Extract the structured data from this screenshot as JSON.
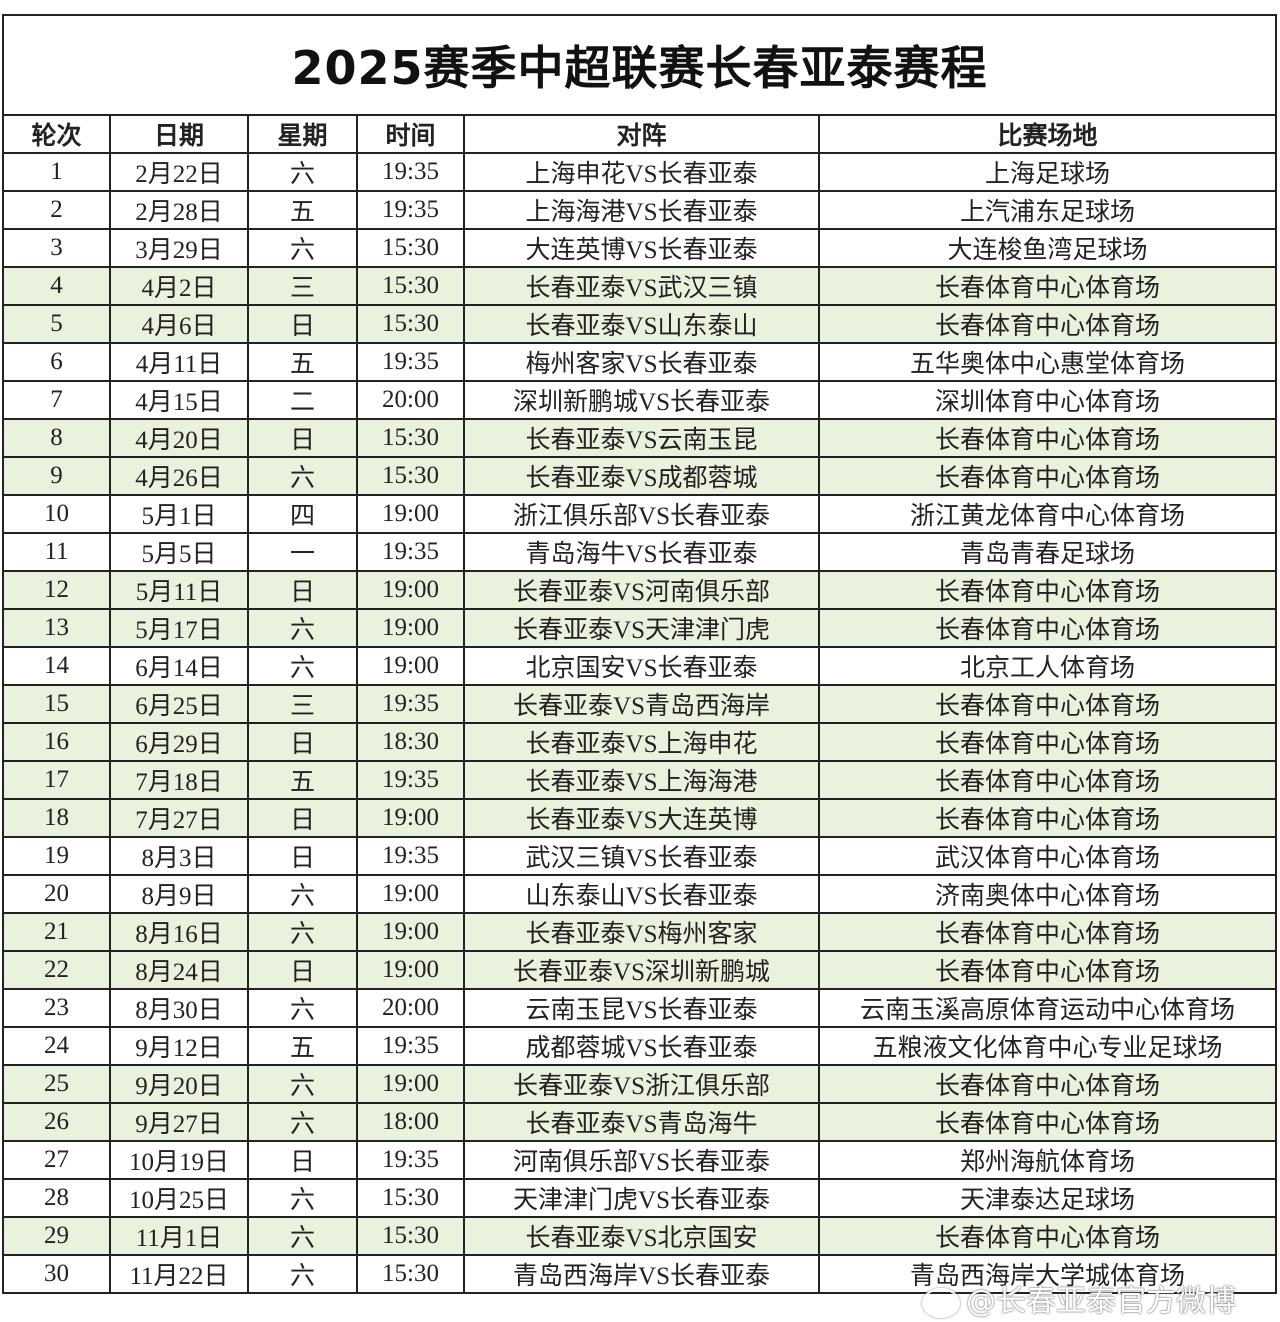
{
  "title": "2025赛季中超联赛长春亚泰赛程",
  "columns": [
    "轮次",
    "日期",
    "星期",
    "时间",
    "对阵",
    "比赛场地"
  ],
  "highlight_color": "#eaf2dd",
  "rows": [
    {
      "round": "1",
      "date": "2月22日",
      "weekday": "六",
      "time": "19:35",
      "match": "上海申花VS长春亚泰",
      "venue": "上海足球场",
      "home": false
    },
    {
      "round": "2",
      "date": "2月28日",
      "weekday": "五",
      "time": "19:35",
      "match": "上海海港VS长春亚泰",
      "venue": "上汽浦东足球场",
      "home": false
    },
    {
      "round": "3",
      "date": "3月29日",
      "weekday": "六",
      "time": "15:30",
      "match": "大连英博VS长春亚泰",
      "venue": "大连梭鱼湾足球场",
      "home": false
    },
    {
      "round": "4",
      "date": "4月2日",
      "weekday": "三",
      "time": "15:30",
      "match": "长春亚泰VS武汉三镇",
      "venue": "长春体育中心体育场",
      "home": true
    },
    {
      "round": "5",
      "date": "4月6日",
      "weekday": "日",
      "time": "15:30",
      "match": "长春亚泰VS山东泰山",
      "venue": "长春体育中心体育场",
      "home": true
    },
    {
      "round": "6",
      "date": "4月11日",
      "weekday": "五",
      "time": "19:35",
      "match": "梅州客家VS长春亚泰",
      "venue": "五华奥体中心惠堂体育场",
      "home": false
    },
    {
      "round": "7",
      "date": "4月15日",
      "weekday": "二",
      "time": "20:00",
      "match": "深圳新鹏城VS长春亚泰",
      "venue": "深圳体育中心体育场",
      "home": false
    },
    {
      "round": "8",
      "date": "4月20日",
      "weekday": "日",
      "time": "15:30",
      "match": "长春亚泰VS云南玉昆",
      "venue": "长春体育中心体育场",
      "home": true
    },
    {
      "round": "9",
      "date": "4月26日",
      "weekday": "六",
      "time": "15:30",
      "match": "长春亚泰VS成都蓉城",
      "venue": "长春体育中心体育场",
      "home": true
    },
    {
      "round": "10",
      "date": "5月1日",
      "weekday": "四",
      "time": "19:00",
      "match": "浙江俱乐部VS长春亚泰",
      "venue": "浙江黄龙体育中心体育场",
      "home": false
    },
    {
      "round": "11",
      "date": "5月5日",
      "weekday": "一",
      "time": "19:35",
      "match": "青岛海牛VS长春亚泰",
      "venue": "青岛青春足球场",
      "home": false
    },
    {
      "round": "12",
      "date": "5月11日",
      "weekday": "日",
      "time": "19:00",
      "match": "长春亚泰VS河南俱乐部",
      "venue": "长春体育中心体育场",
      "home": true
    },
    {
      "round": "13",
      "date": "5月17日",
      "weekday": "六",
      "time": "19:00",
      "match": "长春亚泰VS天津津门虎",
      "venue": "长春体育中心体育场",
      "home": true
    },
    {
      "round": "14",
      "date": "6月14日",
      "weekday": "六",
      "time": "19:00",
      "match": "北京国安VS长春亚泰",
      "venue": "北京工人体育场",
      "home": false
    },
    {
      "round": "15",
      "date": "6月25日",
      "weekday": "三",
      "time": "19:35",
      "match": "长春亚泰VS青岛西海岸",
      "venue": "长春体育中心体育场",
      "home": true
    },
    {
      "round": "16",
      "date": "6月29日",
      "weekday": "日",
      "time": "18:30",
      "match": "长春亚泰VS上海申花",
      "venue": "长春体育中心体育场",
      "home": true
    },
    {
      "round": "17",
      "date": "7月18日",
      "weekday": "五",
      "time": "19:35",
      "match": "长春亚泰VS上海海港",
      "venue": "长春体育中心体育场",
      "home": true
    },
    {
      "round": "18",
      "date": "7月27日",
      "weekday": "日",
      "time": "19:00",
      "match": "长春亚泰VS大连英博",
      "venue": "长春体育中心体育场",
      "home": true
    },
    {
      "round": "19",
      "date": "8月3日",
      "weekday": "日",
      "time": "19:35",
      "match": "武汉三镇VS长春亚泰",
      "venue": "武汉体育中心体育场",
      "home": false
    },
    {
      "round": "20",
      "date": "8月9日",
      "weekday": "六",
      "time": "19:00",
      "match": "山东泰山VS长春亚泰",
      "venue": "济南奥体中心体育场",
      "home": false
    },
    {
      "round": "21",
      "date": "8月16日",
      "weekday": "六",
      "time": "19:00",
      "match": "长春亚泰VS梅州客家",
      "venue": "长春体育中心体育场",
      "home": true
    },
    {
      "round": "22",
      "date": "8月24日",
      "weekday": "日",
      "time": "19:00",
      "match": "长春亚泰VS深圳新鹏城",
      "venue": "长春体育中心体育场",
      "home": true
    },
    {
      "round": "23",
      "date": "8月30日",
      "weekday": "六",
      "time": "20:00",
      "match": "云南玉昆VS长春亚泰",
      "venue": "云南玉溪高原体育运动中心体育场",
      "home": false
    },
    {
      "round": "24",
      "date": "9月12日",
      "weekday": "五",
      "time": "19:35",
      "match": "成都蓉城VS长春亚泰",
      "venue": "五粮液文化体育中心专业足球场",
      "home": false
    },
    {
      "round": "25",
      "date": "9月20日",
      "weekday": "六",
      "time": "19:00",
      "match": "长春亚泰VS浙江俱乐部",
      "venue": "长春体育中心体育场",
      "home": true
    },
    {
      "round": "26",
      "date": "9月27日",
      "weekday": "六",
      "time": "18:00",
      "match": "长春亚泰VS青岛海牛",
      "venue": "长春体育中心体育场",
      "home": true
    },
    {
      "round": "27",
      "date": "10月19日",
      "weekday": "日",
      "time": "19:35",
      "match": "河南俱乐部VS长春亚泰",
      "venue": "郑州海航体育场",
      "home": false
    },
    {
      "round": "28",
      "date": "10月25日",
      "weekday": "六",
      "time": "15:30",
      "match": "天津津门虎VS长春亚泰",
      "venue": "天津泰达足球场",
      "home": false
    },
    {
      "round": "29",
      "date": "11月1日",
      "weekday": "六",
      "time": "15:30",
      "match": "长春亚泰VS北京国安",
      "venue": "长春体育中心体育场",
      "home": true
    },
    {
      "round": "30",
      "date": "11月22日",
      "weekday": "六",
      "time": "15:30",
      "match": "青岛西海岸VS长春亚泰",
      "venue": "青岛西海岸大学城体育场",
      "home": false
    }
  ],
  "watermark": "@长春亚泰官方微博"
}
